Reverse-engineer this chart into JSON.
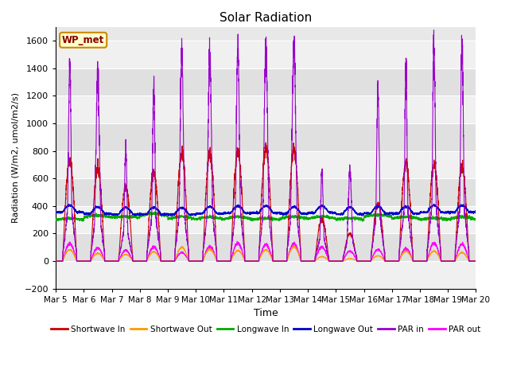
{
  "title": "Solar Radiation",
  "xlabel": "Time",
  "ylabel": "Radiation (W/m2, umol/m2/s)",
  "ylim": [
    -200,
    1700
  ],
  "yticks": [
    -200,
    0,
    200,
    400,
    600,
    800,
    1000,
    1200,
    1400,
    1600
  ],
  "num_days": 15,
  "points_per_day": 288,
  "background_color": "#ffffff",
  "plot_bg_color": "#e8e8e8",
  "band_color_light": "#f0f0f0",
  "band_color_dark": "#e0e0e0",
  "grid_color": "#ffffff",
  "legend_label": "WP_met",
  "daily_par_peaks": [
    1430,
    1330,
    800,
    1270,
    1520,
    1500,
    1550,
    1590,
    1590,
    650,
    650,
    1250,
    1400,
    1590,
    1590
  ],
  "daily_sw_peaks": [
    740,
    670,
    540,
    640,
    780,
    780,
    800,
    820,
    810,
    300,
    200,
    420,
    710,
    700,
    680
  ],
  "series": {
    "shortwave_in": {
      "color": "#cc0000",
      "label": "Shortwave In"
    },
    "shortwave_out": {
      "color": "#ff9900",
      "label": "Shortwave Out"
    },
    "longwave_in": {
      "color": "#00aa00",
      "label": "Longwave In"
    },
    "longwave_out": {
      "color": "#0000cc",
      "label": "Longwave Out"
    },
    "par_in": {
      "color": "#9900cc",
      "label": "PAR in"
    },
    "par_out": {
      "color": "#ff00ff",
      "label": "PAR out"
    }
  }
}
